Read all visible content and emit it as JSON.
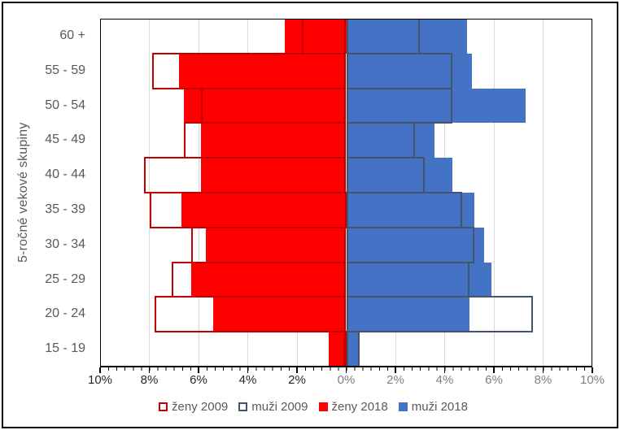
{
  "frame": {
    "background": "#FFFFFF",
    "border_color": "#000000"
  },
  "chart_data": {
    "type": "bar",
    "subtype": "population-pyramid",
    "title": "",
    "xlabel": "",
    "ylabel": "5-ročné vekové skupiny",
    "grid": true,
    "gridline_color": "#D9D9D9",
    "legend_position": "bottom",
    "categories_top_to_bottom": [
      "60 +",
      "55 - 59",
      "50 - 54",
      "45 - 49",
      "40 - 44",
      "35 - 39",
      "30 - 34",
      "25 - 29",
      "20 - 24",
      "15 - 19"
    ],
    "x_axis": {
      "tick_labels": [
        "10%",
        "8%",
        "6%",
        "4%",
        "2%",
        "0%",
        "2%",
        "4%",
        "6%",
        "8%",
        "10%"
      ],
      "max_pct_each_side": 10,
      "major_unit_pct": 2,
      "left_tick_color": "#262626",
      "right_tick_color": "#7F7F7F"
    },
    "series": [
      {
        "name": "ženy 2009",
        "side": "left",
        "style": "outline",
        "color": "#C00000",
        "values": [
          1.8,
          7.9,
          5.9,
          6.6,
          8.2,
          8.0,
          6.3,
          7.1,
          7.8,
          0.1
        ]
      },
      {
        "name": "muži 2009",
        "side": "right",
        "style": "outline",
        "color": "#44546A",
        "values": [
          3.0,
          4.3,
          4.3,
          2.8,
          3.2,
          4.7,
          5.2,
          5.0,
          7.6,
          0.55
        ]
      },
      {
        "name": "ženy 2018",
        "side": "left",
        "style": "fill",
        "color": "#FF0000",
        "values": [
          2.5,
          6.8,
          6.6,
          5.9,
          5.9,
          6.7,
          5.7,
          6.3,
          5.4,
          0.7
        ]
      },
      {
        "name": "muži 2018",
        "side": "right",
        "style": "fill",
        "color": "#4472C4",
        "values": [
          4.9,
          5.1,
          7.3,
          3.6,
          4.3,
          5.2,
          5.6,
          5.9,
          5.0,
          0.5
        ]
      }
    ]
  },
  "legend": {
    "items": [
      {
        "label": "ženy 2009",
        "swatch": "outline",
        "color": "#C00000"
      },
      {
        "label": "muži 2009",
        "swatch": "outline",
        "color": "#44546A"
      },
      {
        "label": "ženy 2018",
        "swatch": "fill",
        "color": "#FF0000"
      },
      {
        "label": "muži 2018",
        "swatch": "fill",
        "color": "#4472C4"
      }
    ]
  }
}
